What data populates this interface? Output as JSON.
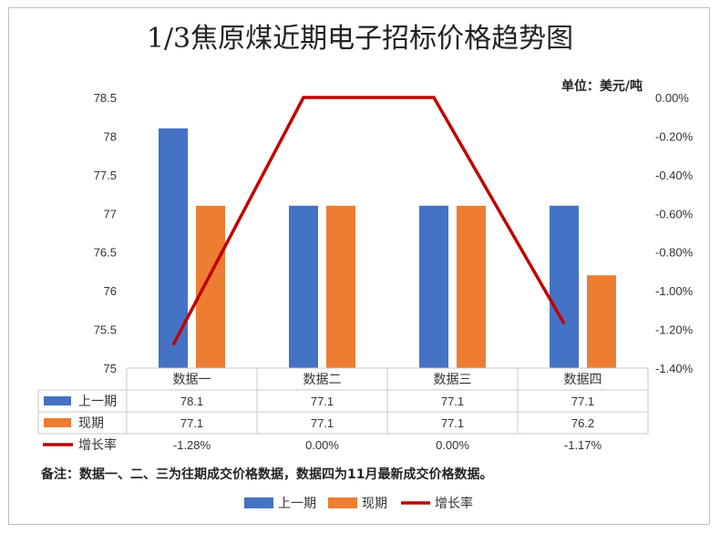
{
  "chart_data": {
    "type": "bar",
    "title": "1/3焦原煤近期电子招标价格趋势图",
    "unit_label": "单位：美元/吨",
    "categories": [
      "数据一",
      "数据二",
      "数据三",
      "数据四"
    ],
    "series": [
      {
        "name": "上一期",
        "kind": "bar",
        "axis": "left",
        "color": "#4472C4",
        "values": [
          78.1,
          77.1,
          77.1,
          77.1
        ],
        "labels": [
          "78.1",
          "77.1",
          "77.1",
          "77.1"
        ]
      },
      {
        "name": "现期",
        "kind": "bar",
        "axis": "left",
        "color": "#ED7D31",
        "values": [
          77.1,
          77.1,
          77.1,
          76.2
        ],
        "labels": [
          "77.1",
          "77.1",
          "77.1",
          "76.2"
        ]
      },
      {
        "name": "增长率",
        "kind": "line",
        "axis": "right",
        "color": "#C00000",
        "values": [
          -1.28,
          0.0,
          0.0,
          -1.17
        ],
        "labels": [
          "-1.28%",
          "0.00%",
          "0.00%",
          "-1.17%"
        ]
      }
    ],
    "y_left": {
      "min": 75,
      "max": 78.5,
      "ticks": [
        "78.5",
        "78",
        "77.5",
        "77",
        "76.5",
        "76",
        "75.5",
        "75"
      ]
    },
    "y_right": {
      "min": -1.4,
      "max": 0.0,
      "ticks": [
        "0.00%",
        "-0.20%",
        "-0.40%",
        "-0.60%",
        "-0.80%",
        "-1.00%",
        "-1.20%",
        "-1.40%"
      ]
    },
    "grid": false,
    "data_table": true,
    "legend": "bottom",
    "note": "备注：数据一、二、三为往期成交价格数据，数据四为11月最新成交价格数据。"
  }
}
